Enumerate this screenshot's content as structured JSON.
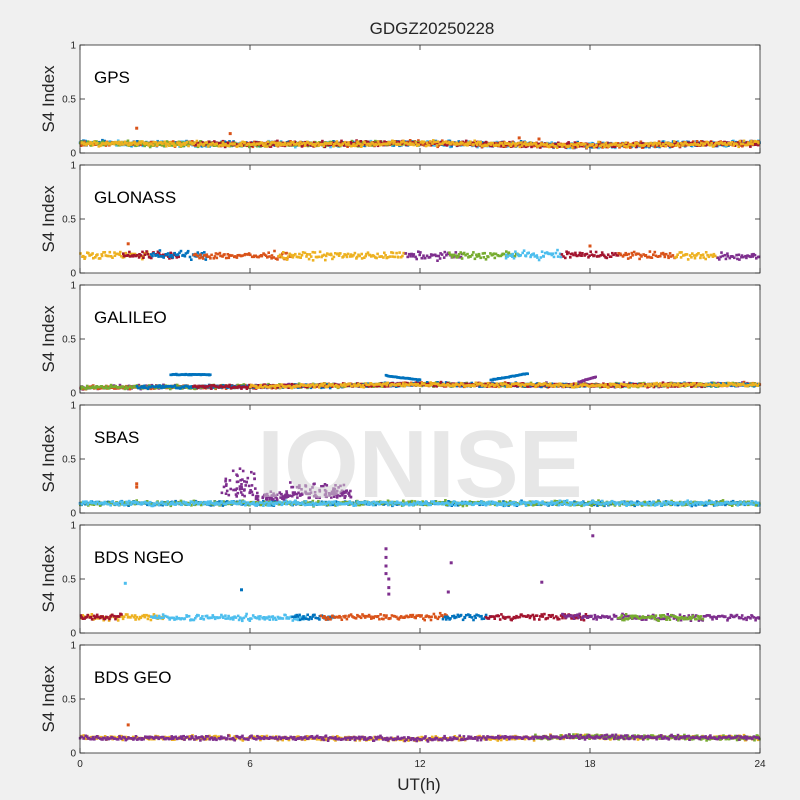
{
  "figure": {
    "title": "GDGZ20250228",
    "watermark": "IONISE",
    "background": "#f0f0f0",
    "axes_background": "#ffffff"
  },
  "chart_data": {
    "type": "scatter",
    "xlabel": "UT(h)",
    "ylabel": "S4 Index",
    "xlim": [
      0,
      24
    ],
    "ylim": [
      0,
      1
    ],
    "xticks": [
      "0",
      "6",
      "12",
      "18",
      "24"
    ],
    "yticks": [
      "0",
      "0.5",
      "1"
    ],
    "grid": false,
    "colors": [
      "#0072BD",
      "#D95319",
      "#EDB120",
      "#7E2F8E",
      "#77AC30",
      "#4DBEEE",
      "#A2142F"
    ],
    "panels": [
      {
        "name": "GPS",
        "baseline": [
          [
            0,
            0.09
          ],
          [
            6,
            0.08
          ],
          [
            12,
            0.09
          ],
          [
            18,
            0.07
          ],
          [
            24,
            0.09
          ]
        ],
        "spread": 0.035,
        "segments": [
          {
            "color": 5,
            "t0": 0,
            "t1": 24
          },
          {
            "color": 0,
            "t0": 0,
            "t1": 24
          },
          {
            "color": 1,
            "t0": 0,
            "t1": 24
          },
          {
            "color": 4,
            "t0": 0,
            "t1": 12
          },
          {
            "color": 6,
            "t0": 4,
            "t1": 24
          },
          {
            "color": 2,
            "t0": 0,
            "t1": 24
          }
        ],
        "outliers": [
          [
            2.0,
            0.23
          ],
          [
            5.3,
            0.18
          ],
          [
            15.5,
            0.14
          ],
          [
            16.2,
            0.13
          ]
        ]
      },
      {
        "name": "GLONASS",
        "baseline": [
          [
            0,
            0.17
          ],
          [
            6,
            0.16
          ],
          [
            12,
            0.16
          ],
          [
            18,
            0.17
          ],
          [
            24,
            0.15
          ]
        ],
        "spread": 0.05,
        "segments": [
          {
            "color": 2,
            "t0": 0,
            "t1": 2.5
          },
          {
            "color": 6,
            "t0": 1.5,
            "t1": 3.5
          },
          {
            "color": 0,
            "t0": 2.5,
            "t1": 4.5
          },
          {
            "color": 1,
            "t0": 4.0,
            "t1": 7.5
          },
          {
            "color": 2,
            "t0": 7.0,
            "t1": 11.5
          },
          {
            "color": 3,
            "t0": 11.5,
            "t1": 13.5
          },
          {
            "color": 4,
            "t0": 13.0,
            "t1": 15.5
          },
          {
            "color": 5,
            "t0": 15.0,
            "t1": 17.0
          },
          {
            "color": 6,
            "t0": 17.0,
            "t1": 19.0
          },
          {
            "color": 1,
            "t0": 19.0,
            "t1": 21.0
          },
          {
            "color": 2,
            "t0": 21.0,
            "t1": 22.5
          },
          {
            "color": 3,
            "t0": 22.5,
            "t1": 24.0
          }
        ],
        "outliers": [
          [
            1.7,
            0.27
          ],
          [
            18.0,
            0.25
          ]
        ]
      },
      {
        "name": "GALILEO",
        "baseline": [
          [
            0,
            0.05
          ],
          [
            6,
            0.06
          ],
          [
            12,
            0.08
          ],
          [
            18,
            0.07
          ],
          [
            24,
            0.08
          ]
        ],
        "spread": 0.025,
        "segments": [
          {
            "color": 3,
            "t0": 0,
            "t1": 24
          },
          {
            "color": 1,
            "t0": 0,
            "t1": 24
          },
          {
            "color": 4,
            "t0": 0,
            "t1": 24
          },
          {
            "color": 0,
            "t0": 2,
            "t1": 24
          },
          {
            "color": 6,
            "t0": 4,
            "t1": 22
          },
          {
            "color": 2,
            "t0": 6,
            "t1": 24
          }
        ],
        "arcs": [
          {
            "color": 0,
            "t0": 3.2,
            "t1": 4.6,
            "y0": 0.17,
            "y1": 0.17
          },
          {
            "color": 0,
            "t0": 10.8,
            "t1": 12.0,
            "y0": 0.16,
            "y1": 0.12
          },
          {
            "color": 0,
            "t0": 14.5,
            "t1": 15.8,
            "y0": 0.12,
            "y1": 0.18
          },
          {
            "color": 3,
            "t0": 17.6,
            "t1": 18.2,
            "y0": 0.1,
            "y1": 0.15
          }
        ],
        "outliers": []
      },
      {
        "name": "SBAS",
        "baseline": [
          [
            0,
            0.09
          ],
          [
            6,
            0.09
          ],
          [
            12,
            0.09
          ],
          [
            18,
            0.09
          ],
          [
            24,
            0.09
          ]
        ],
        "spread": 0.03,
        "segments": [
          {
            "color": 0,
            "t0": 0,
            "t1": 24
          },
          {
            "color": 4,
            "t0": 0,
            "t1": 24
          },
          {
            "color": 5,
            "t0": 0,
            "t1": 24
          }
        ],
        "arcs": [],
        "events": [
          {
            "color": 3,
            "t0": 5.0,
            "t1": 6.2,
            "ymin": 0.15,
            "ymax": 0.47
          },
          {
            "color": 3,
            "t0": 6.2,
            "t1": 7.4,
            "ymin": 0.12,
            "ymax": 0.22
          },
          {
            "color": 3,
            "t0": 7.4,
            "t1": 9.6,
            "ymin": 0.14,
            "ymax": 0.3
          }
        ],
        "outliers": [
          [
            2.0,
            0.24
          ],
          [
            2.0,
            0.27
          ]
        ]
      },
      {
        "name": "BDS NGEO",
        "baseline": [
          [
            0,
            0.15
          ],
          [
            6,
            0.14
          ],
          [
            12,
            0.15
          ],
          [
            18,
            0.15
          ],
          [
            24,
            0.14
          ]
        ],
        "spread": 0.04,
        "segments": [
          {
            "color": 2,
            "t0": 0,
            "t1": 3.0
          },
          {
            "color": 6,
            "t0": 0,
            "t1": 1.5
          },
          {
            "color": 5,
            "t0": 2.5,
            "t1": 8.0
          },
          {
            "color": 0,
            "t0": 7.5,
            "t1": 9.0
          },
          {
            "color": 1,
            "t0": 8.5,
            "t1": 13.0
          },
          {
            "color": 0,
            "t0": 12.8,
            "t1": 14.5
          },
          {
            "color": 6,
            "t0": 14.3,
            "t1": 18.0
          },
          {
            "color": 3,
            "t0": 17.0,
            "t1": 24.0
          },
          {
            "color": 4,
            "t0": 19.0,
            "t1": 22.0
          }
        ],
        "outliers": [
          [
            1.6,
            0.46
          ],
          [
            5.7,
            0.4
          ],
          [
            10.8,
            0.78
          ],
          [
            10.8,
            0.7
          ],
          [
            10.8,
            0.62
          ],
          [
            10.8,
            0.55
          ],
          [
            10.9,
            0.5
          ],
          [
            10.9,
            0.42
          ],
          [
            10.9,
            0.36
          ],
          [
            13.1,
            0.65
          ],
          [
            13.0,
            0.38
          ],
          [
            16.3,
            0.47
          ],
          [
            18.1,
            0.9
          ]
        ]
      },
      {
        "name": "BDS GEO",
        "baseline": [
          [
            0,
            0.14
          ],
          [
            6,
            0.14
          ],
          [
            12,
            0.13
          ],
          [
            18,
            0.15
          ],
          [
            24,
            0.14
          ]
        ],
        "spread": 0.03,
        "segments": [
          {
            "color": 2,
            "t0": 0,
            "t1": 24
          },
          {
            "color": 4,
            "t0": 16,
            "t1": 24
          },
          {
            "color": 3,
            "t0": 0,
            "t1": 24
          }
        ],
        "outliers": [
          [
            1.7,
            0.26
          ]
        ]
      }
    ]
  }
}
